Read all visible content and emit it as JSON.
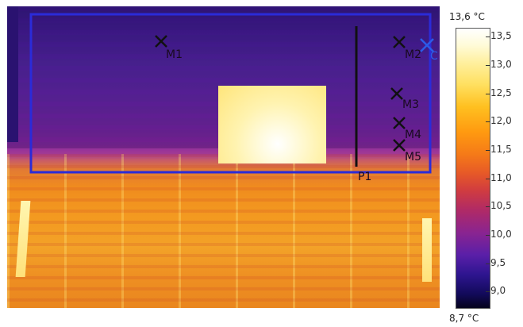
{
  "markers": [
    {
      "id": "m1",
      "label": "M1"
    },
    {
      "id": "m2",
      "label": "M2"
    },
    {
      "id": "m3",
      "label": "M3"
    },
    {
      "id": "m4",
      "label": "M4"
    },
    {
      "id": "m5",
      "label": "M5"
    }
  ],
  "profile_label": "P1",
  "cursor_label": "C",
  "scale": {
    "max_label": "13,6 °C",
    "min_label": "8,7 °C",
    "ticks": [
      "13,5",
      "13,0",
      "12,5",
      "12,0",
      "11,5",
      "11,0",
      "10,5",
      "10,0",
      "9,5",
      "9,0"
    ]
  },
  "colors": {
    "roi_box": "#2b2bd8",
    "marker": "#111111",
    "hot": "#fff6c0"
  }
}
